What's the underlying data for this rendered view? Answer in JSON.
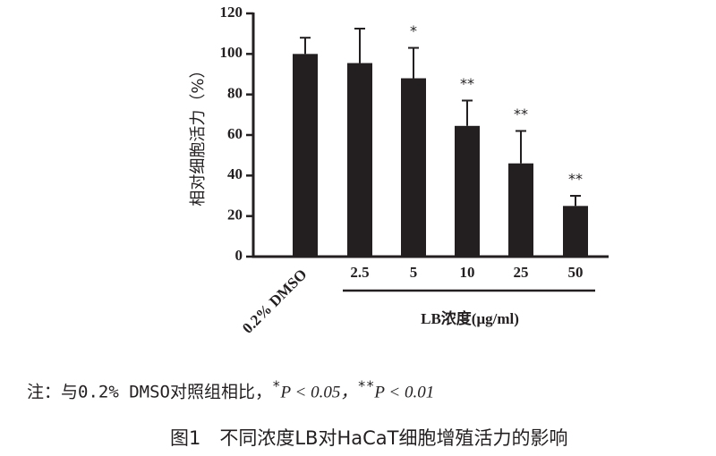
{
  "chart_data": {
    "type": "bar",
    "ylabel": "相对细胞活力（%）",
    "xlabel": "LB浓度(μg/ml)",
    "categories": [
      "0.2% DMSO",
      "2.5",
      "5",
      "10",
      "25",
      "50"
    ],
    "values": [
      100,
      95.5,
      88,
      64.5,
      46,
      25
    ],
    "errors": [
      8,
      17,
      15,
      12.5,
      16,
      5
    ],
    "significance": [
      null,
      null,
      "*",
      "**",
      "**",
      "**"
    ],
    "color": "#231f20",
    "ylim": [
      0,
      120
    ],
    "yticks": [
      0,
      20,
      40,
      60,
      80,
      100,
      120
    ],
    "grid": false,
    "footnote": {
      "prefix": "注：与0.2% DMSO对照组相比，",
      "sig1": "*",
      "p1": "P < 0.05，",
      "sig2": "**",
      "p2": "P < 0.01"
    },
    "caption": "图1　不同浓度LB对HaCaT细胞增殖活力的影响"
  }
}
